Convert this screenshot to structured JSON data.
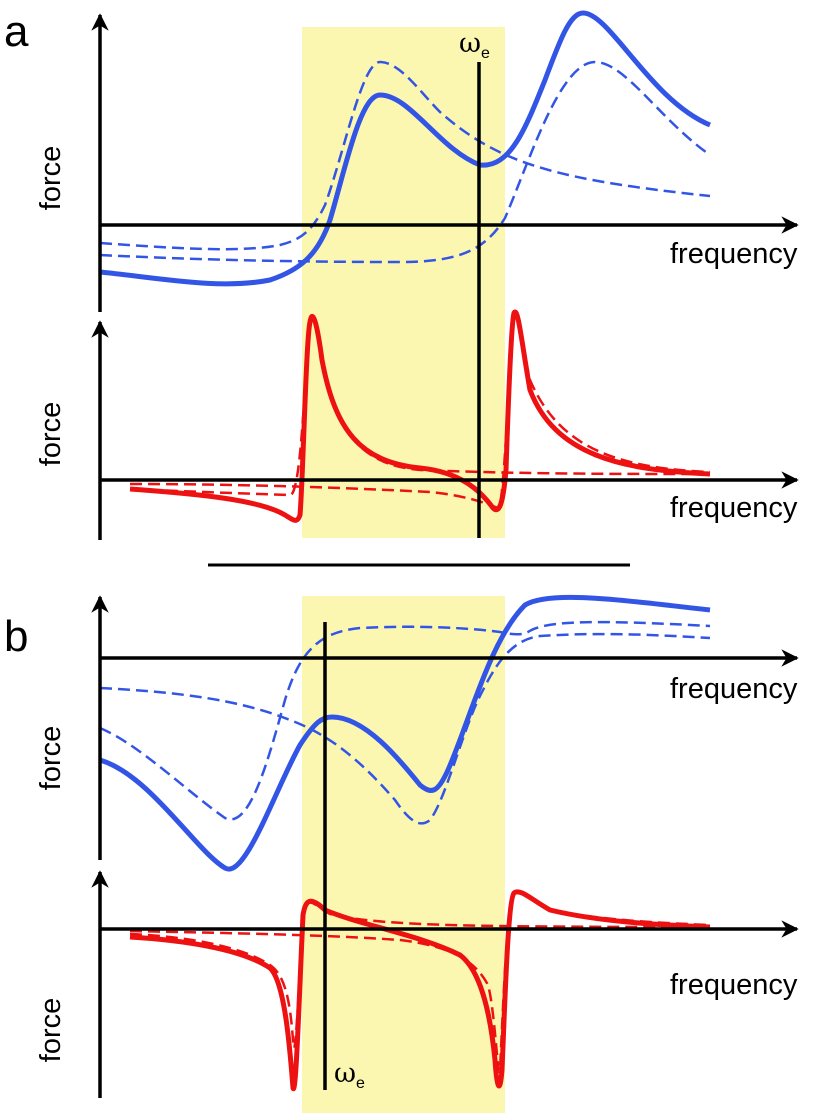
{
  "figure": {
    "panel_a": {
      "letter": "a",
      "top_plot": {
        "ylabel": "force",
        "xlabel": "frequency",
        "curves": [
          {
            "name": "total-force",
            "style": "solid",
            "color": "#3355e6"
          },
          {
            "name": "component-1",
            "style": "dashed",
            "color": "#3355e6"
          },
          {
            "name": "component-2",
            "style": "dashed",
            "color": "#3355e6"
          }
        ]
      },
      "bottom_plot": {
        "ylabel": "force",
        "xlabel": "frequency",
        "curves": [
          {
            "name": "total-force",
            "style": "solid",
            "color": "#ee1111"
          },
          {
            "name": "component-1",
            "style": "dashed",
            "color": "#ee1111"
          },
          {
            "name": "component-2",
            "style": "dashed",
            "color": "#ee1111"
          }
        ]
      },
      "marker": {
        "symbol": "ω",
        "subscript": "e"
      }
    },
    "panel_b": {
      "letter": "b",
      "top_plot": {
        "ylabel": "force",
        "xlabel": "frequency",
        "curves": [
          {
            "name": "total-force",
            "style": "solid",
            "color": "#3355e6"
          },
          {
            "name": "component-1",
            "style": "dashed",
            "color": "#3355e6"
          },
          {
            "name": "component-2",
            "style": "dashed",
            "color": "#3355e6"
          }
        ]
      },
      "bottom_plot": {
        "ylabel": "force",
        "xlabel": "frequency",
        "curves": [
          {
            "name": "total-force",
            "style": "solid",
            "color": "#ee1111"
          },
          {
            "name": "component-1",
            "style": "dashed",
            "color": "#ee1111"
          },
          {
            "name": "component-2",
            "style": "dashed",
            "color": "#ee1111"
          }
        ]
      },
      "marker": {
        "symbol": "ω",
        "subscript": "e"
      }
    },
    "colors": {
      "highlight_band": "#fbf7b0",
      "axis": "#000000",
      "blue": "#3355e6",
      "red": "#ee1111"
    }
  }
}
